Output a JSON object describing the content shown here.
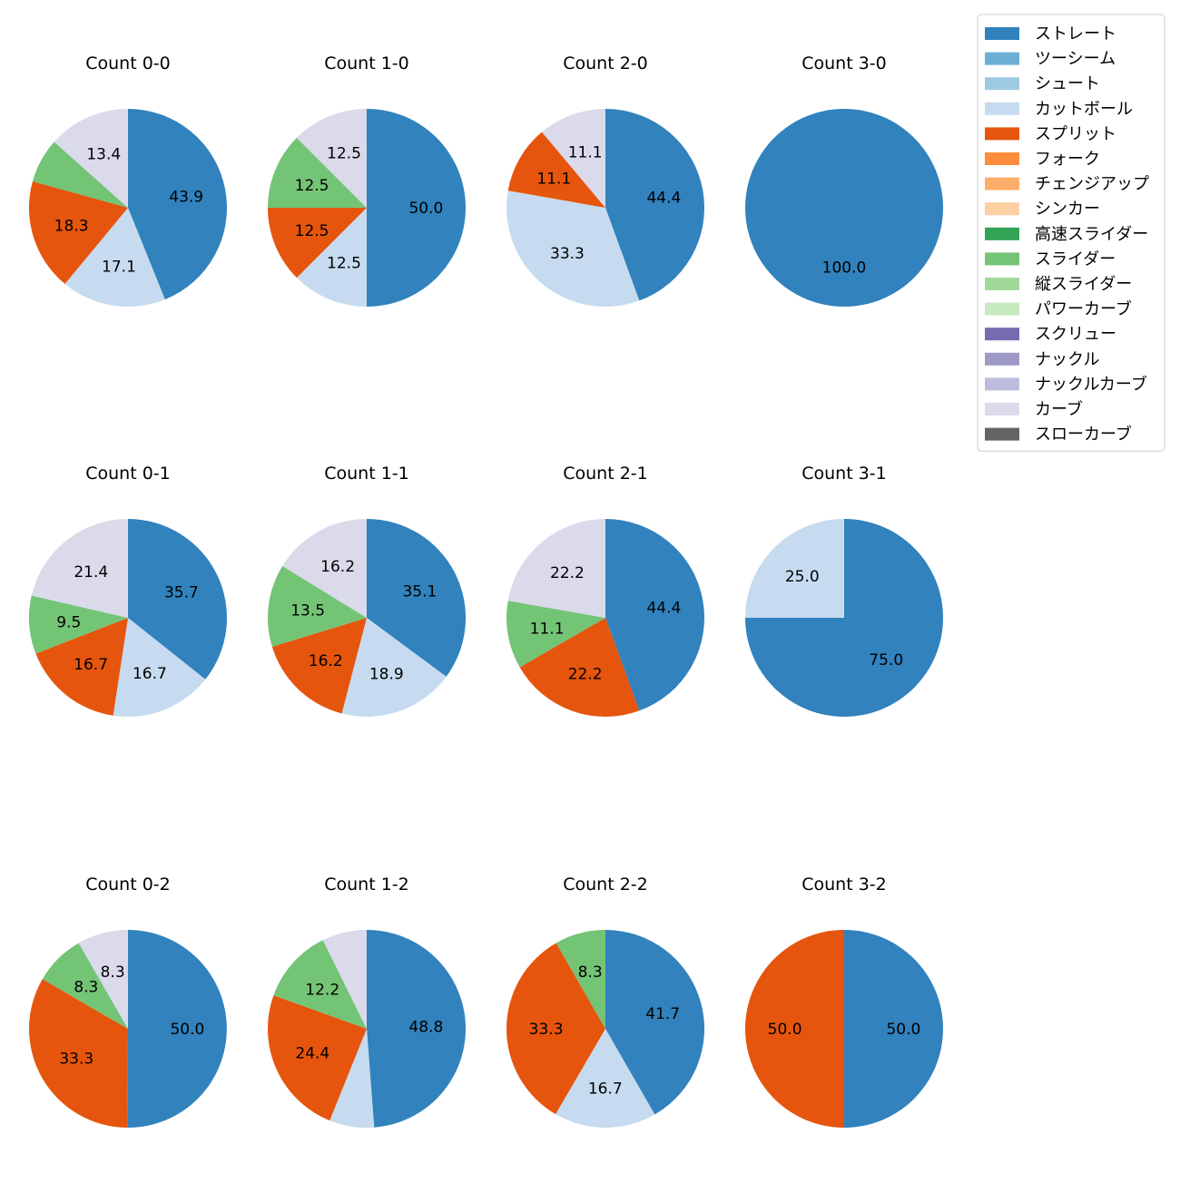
{
  "chart_data": {
    "type": "pie",
    "pitch_types": [
      {
        "name": "ストレート",
        "color": "#3182bd"
      },
      {
        "name": "ツーシーム",
        "color": "#6baed6"
      },
      {
        "name": "シュート",
        "color": "#9ecae1"
      },
      {
        "name": "カットボール",
        "color": "#c6dbef"
      },
      {
        "name": "スプリット",
        "color": "#e6550d"
      },
      {
        "name": "フォーク",
        "color": "#fd8d3c"
      },
      {
        "name": "チェンジアップ",
        "color": "#fdae6b"
      },
      {
        "name": "シンカー",
        "color": "#fdd0a2"
      },
      {
        "name": "高速スライダー",
        "color": "#31a354"
      },
      {
        "name": "スライダー",
        "color": "#74c476"
      },
      {
        "name": "縦スライダー",
        "color": "#a1d99b"
      },
      {
        "name": "パワーカーブ",
        "color": "#c7e9c0"
      },
      {
        "name": "スクリュー",
        "color": "#756bb1"
      },
      {
        "name": "ナックル",
        "color": "#9e9ac8"
      },
      {
        "name": "ナックルカーブ",
        "color": "#bcbddc"
      },
      {
        "name": "カーブ",
        "color": "#dadaeb"
      },
      {
        "name": "スローカーブ",
        "color": "#636363"
      }
    ],
    "legend_position": "top-right",
    "panels": [
      {
        "title": "Count 0-0",
        "slices": [
          {
            "type": "ストレート",
            "value": 43.9,
            "label": "43.9"
          },
          {
            "type": "カットボール",
            "value": 17.1,
            "label": "17.1"
          },
          {
            "type": "スプリット",
            "value": 18.3,
            "label": "18.3"
          },
          {
            "type": "スライダー",
            "value": 7.3,
            "label": ""
          },
          {
            "type": "カーブ",
            "value": 13.4,
            "label": "13.4"
          }
        ]
      },
      {
        "title": "Count 1-0",
        "slices": [
          {
            "type": "ストレート",
            "value": 50.0,
            "label": "50.0"
          },
          {
            "type": "カットボール",
            "value": 12.5,
            "label": "12.5"
          },
          {
            "type": "スプリット",
            "value": 12.5,
            "label": "12.5"
          },
          {
            "type": "スライダー",
            "value": 12.5,
            "label": "12.5"
          },
          {
            "type": "カーブ",
            "value": 12.5,
            "label": "12.5"
          }
        ]
      },
      {
        "title": "Count 2-0",
        "slices": [
          {
            "type": "ストレート",
            "value": 44.4,
            "label": "44.4"
          },
          {
            "type": "カットボール",
            "value": 33.3,
            "label": "33.3"
          },
          {
            "type": "スプリット",
            "value": 11.1,
            "label": "11.1"
          },
          {
            "type": "カーブ",
            "value": 11.1,
            "label": "11.1"
          }
        ]
      },
      {
        "title": "Count 3-0",
        "slices": [
          {
            "type": "ストレート",
            "value": 100.0,
            "label": "100.0"
          }
        ]
      },
      {
        "title": "Count 0-1",
        "slices": [
          {
            "type": "ストレート",
            "value": 35.7,
            "label": "35.7"
          },
          {
            "type": "カットボール",
            "value": 16.7,
            "label": "16.7"
          },
          {
            "type": "スプリット",
            "value": 16.7,
            "label": "16.7"
          },
          {
            "type": "スライダー",
            "value": 9.5,
            "label": "9.5"
          },
          {
            "type": "カーブ",
            "value": 21.4,
            "label": "21.4"
          }
        ]
      },
      {
        "title": "Count 1-1",
        "slices": [
          {
            "type": "ストレート",
            "value": 35.1,
            "label": "35.1"
          },
          {
            "type": "カットボール",
            "value": 18.9,
            "label": "18.9"
          },
          {
            "type": "スプリット",
            "value": 16.2,
            "label": "16.2"
          },
          {
            "type": "スライダー",
            "value": 13.5,
            "label": "13.5"
          },
          {
            "type": "カーブ",
            "value": 16.2,
            "label": "16.2"
          }
        ]
      },
      {
        "title": "Count 2-1",
        "slices": [
          {
            "type": "ストレート",
            "value": 44.4,
            "label": "44.4"
          },
          {
            "type": "スプリット",
            "value": 22.2,
            "label": "22.2"
          },
          {
            "type": "スライダー",
            "value": 11.1,
            "label": "11.1"
          },
          {
            "type": "カーブ",
            "value": 22.2,
            "label": "22.2"
          }
        ]
      },
      {
        "title": "Count 3-1",
        "slices": [
          {
            "type": "ストレート",
            "value": 75.0,
            "label": "75.0"
          },
          {
            "type": "カットボール",
            "value": 25.0,
            "label": "25.0"
          }
        ]
      },
      {
        "title": "Count 0-2",
        "slices": [
          {
            "type": "ストレート",
            "value": 50.0,
            "label": "50.0"
          },
          {
            "type": "スプリット",
            "value": 33.3,
            "label": "33.3"
          },
          {
            "type": "スライダー",
            "value": 8.3,
            "label": "8.3"
          },
          {
            "type": "カーブ",
            "value": 8.3,
            "label": "8.3"
          }
        ]
      },
      {
        "title": "Count 1-2",
        "slices": [
          {
            "type": "ストレート",
            "value": 48.8,
            "label": "48.8"
          },
          {
            "type": "カットボール",
            "value": 7.3,
            "label": ""
          },
          {
            "type": "スプリット",
            "value": 24.4,
            "label": "24.4"
          },
          {
            "type": "スライダー",
            "value": 12.2,
            "label": "12.2"
          },
          {
            "type": "カーブ",
            "value": 7.3,
            "label": ""
          }
        ]
      },
      {
        "title": "Count 2-2",
        "slices": [
          {
            "type": "ストレート",
            "value": 41.7,
            "label": "41.7"
          },
          {
            "type": "カットボール",
            "value": 16.7,
            "label": "16.7"
          },
          {
            "type": "スプリット",
            "value": 33.3,
            "label": "33.3"
          },
          {
            "type": "スライダー",
            "value": 8.3,
            "label": "8.3"
          }
        ]
      },
      {
        "title": "Count 3-2",
        "slices": [
          {
            "type": "ストレート",
            "value": 50.0,
            "label": "50.0"
          },
          {
            "type": "スプリット",
            "value": 50.0,
            "label": "50.0"
          }
        ]
      }
    ]
  }
}
